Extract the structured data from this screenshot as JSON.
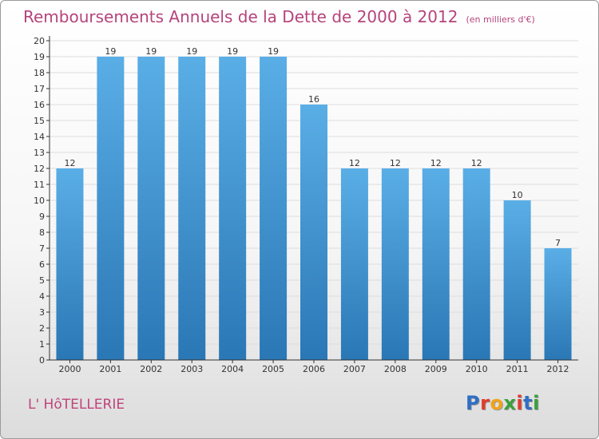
{
  "title": "Remboursements Annuels de la Dette de 2000 à 2012",
  "subtitle": "(en milliers d'€)",
  "commune": "L' HôTELLERIE",
  "logo": {
    "letters": [
      "P",
      "r",
      "o",
      "x",
      "i",
      "t",
      "i"
    ],
    "colors": [
      "#2e6fc4",
      "#e23a2a",
      "#f2a31b",
      "#3a9f3a",
      "#e23a2a",
      "#2e6fc4",
      "#3a9f3a"
    ]
  },
  "colors": {
    "title": "#b5447b",
    "bar_top": "#5aaee6",
    "bar_bottom": "#2a77b5",
    "axis": "#333333",
    "grid": "#dddddd"
  },
  "chart_data": {
    "type": "bar",
    "categories": [
      "2000",
      "2001",
      "2002",
      "2003",
      "2004",
      "2005",
      "2006",
      "2007",
      "2008",
      "2009",
      "2010",
      "2011",
      "2012"
    ],
    "values": [
      12,
      19,
      19,
      19,
      19,
      19,
      16,
      12,
      12,
      12,
      12,
      10,
      7
    ],
    "data_labels": [
      "12",
      "19",
      "19",
      "19",
      "19",
      "19",
      "16",
      "12",
      "12",
      "12",
      "12",
      "10",
      "7"
    ],
    "y_ticks": [
      "0",
      "1",
      "2",
      "3",
      "4",
      "5",
      "6",
      "7",
      "8",
      "9",
      "10",
      "11",
      "12",
      "13",
      "14",
      "15",
      "16",
      "17",
      "18",
      "19",
      "20"
    ],
    "ylim": [
      0,
      20
    ],
    "grid": true
  }
}
